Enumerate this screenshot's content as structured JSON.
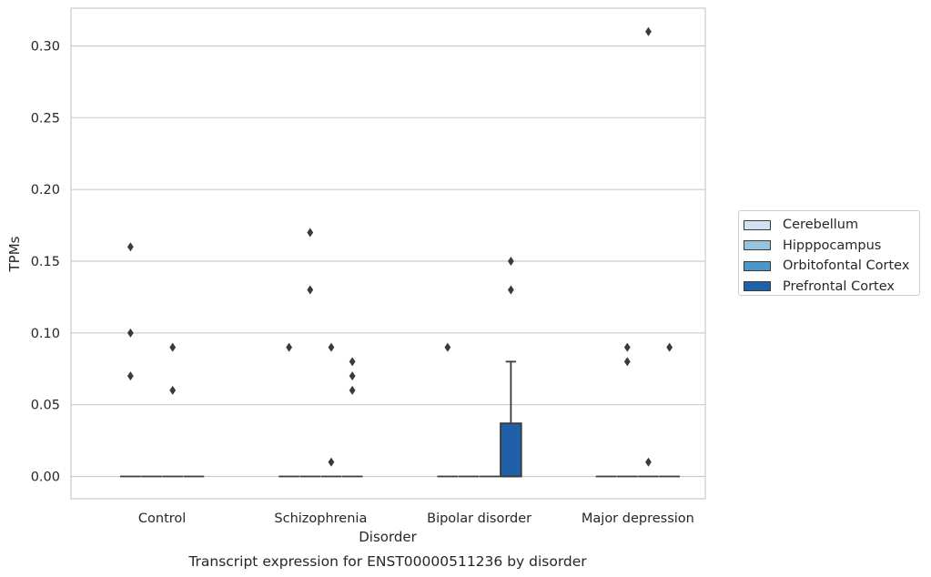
{
  "chart_data": {
    "type": "boxplot",
    "title": "Transcript expression for ENST00000511236 by disorder",
    "xlabel": "Disorder",
    "ylabel": "TPMs",
    "categories": [
      "Control",
      "Schizophrenia",
      "Bipolar disorder",
      "Major depression"
    ],
    "ylim": [
      -0.015,
      0.325
    ],
    "yticks": [
      "0.00",
      "0.05",
      "0.10",
      "0.15",
      "0.20",
      "0.25",
      "0.30"
    ],
    "ytick_values": [
      0,
      0.05,
      0.1,
      0.15,
      0.2,
      0.25,
      0.3
    ],
    "grid": "horizontal",
    "legend_position": "right",
    "series": [
      {
        "name": "Cerebellum",
        "color": "#d0e1f2",
        "boxes": [
          {
            "q1": 0,
            "median": 0,
            "q3": 0,
            "whisker_low": 0,
            "whisker_high": 0,
            "outliers": [
              0.07,
              0.1,
              0.16
            ]
          },
          {
            "q1": 0,
            "median": 0,
            "q3": 0,
            "whisker_low": 0,
            "whisker_high": 0,
            "outliers": [
              0.09
            ]
          },
          {
            "q1": 0,
            "median": 0,
            "q3": 0,
            "whisker_low": 0,
            "whisker_high": 0,
            "outliers": [
              0.09
            ]
          },
          {
            "q1": 0,
            "median": 0,
            "q3": 0,
            "whisker_low": 0,
            "whisker_high": 0,
            "outliers": []
          }
        ]
      },
      {
        "name": "Hipppocampus",
        "color": "#94c4df",
        "boxes": [
          {
            "q1": 0,
            "median": 0,
            "q3": 0,
            "whisker_low": 0,
            "whisker_high": 0,
            "outliers": []
          },
          {
            "q1": 0,
            "median": 0,
            "q3": 0,
            "whisker_low": 0,
            "whisker_high": 0,
            "outliers": [
              0.13,
              0.17
            ]
          },
          {
            "q1": 0,
            "median": 0,
            "q3": 0,
            "whisker_low": 0,
            "whisker_high": 0,
            "outliers": []
          },
          {
            "q1": 0,
            "median": 0,
            "q3": 0,
            "whisker_low": 0,
            "whisker_high": 0,
            "outliers": [
              0.08,
              0.09
            ]
          }
        ]
      },
      {
        "name": "Orbitofontal Cortex",
        "color": "#4a98c9",
        "boxes": [
          {
            "q1": 0,
            "median": 0,
            "q3": 0,
            "whisker_low": 0,
            "whisker_high": 0,
            "outliers": [
              0.06,
              0.09
            ]
          },
          {
            "q1": 0,
            "median": 0,
            "q3": 0,
            "whisker_low": 0,
            "whisker_high": 0,
            "outliers": [
              0.01,
              0.09
            ]
          },
          {
            "q1": 0,
            "median": 0,
            "q3": 0,
            "whisker_low": 0,
            "whisker_high": 0,
            "outliers": []
          },
          {
            "q1": 0,
            "median": 0,
            "q3": 0,
            "whisker_low": 0,
            "whisker_high": 0,
            "outliers": [
              0.01,
              0.31
            ]
          }
        ]
      },
      {
        "name": "Prefrontal Cortex",
        "color": "#2060a8",
        "boxes": [
          {
            "q1": 0,
            "median": 0,
            "q3": 0,
            "whisker_low": 0,
            "whisker_high": 0,
            "outliers": []
          },
          {
            "q1": 0,
            "median": 0,
            "q3": 0,
            "whisker_low": 0,
            "whisker_high": 0,
            "outliers": [
              0.06,
              0.07,
              0.08
            ]
          },
          {
            "q1": 0,
            "median": 0,
            "q3": 0.037,
            "whisker_low": 0,
            "whisker_high": 0.08,
            "outliers": [
              0.13,
              0.15
            ]
          },
          {
            "q1": 0,
            "median": 0,
            "q3": 0,
            "whisker_low": 0,
            "whisker_high": 0,
            "outliers": [
              0.09
            ]
          }
        ]
      }
    ]
  }
}
